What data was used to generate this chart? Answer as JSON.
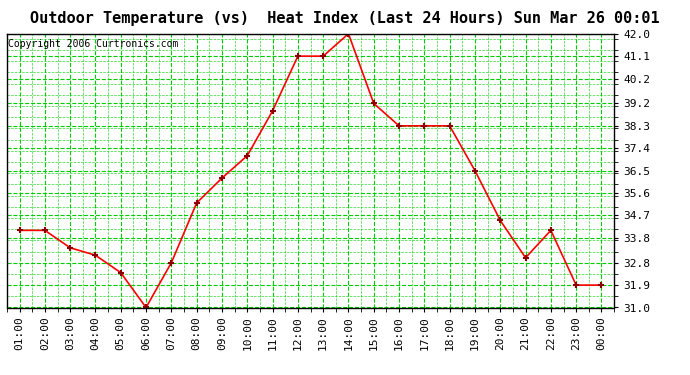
{
  "title": "Outdoor Temperature (vs)  Heat Index (Last 24 Hours) Sun Mar 26 00:01",
  "copyright": "Copyright 2006 Curtronics.com",
  "x_labels": [
    "01:00",
    "02:00",
    "03:00",
    "04:00",
    "05:00",
    "06:00",
    "07:00",
    "08:00",
    "09:00",
    "10:00",
    "11:00",
    "12:00",
    "13:00",
    "14:00",
    "15:00",
    "16:00",
    "17:00",
    "18:00",
    "19:00",
    "20:00",
    "21:00",
    "22:00",
    "23:00",
    "00:00"
  ],
  "y_values": [
    34.1,
    34.1,
    33.4,
    33.1,
    32.4,
    31.0,
    32.8,
    35.2,
    36.2,
    37.1,
    38.9,
    41.1,
    41.1,
    42.0,
    39.2,
    38.3,
    38.3,
    38.3,
    36.5,
    34.5,
    33.0,
    34.1,
    31.9,
    31.9
  ],
  "y_min": 31.0,
  "y_max": 42.0,
  "y_ticks": [
    31.0,
    31.9,
    32.8,
    33.8,
    34.7,
    35.6,
    36.5,
    37.4,
    38.3,
    39.2,
    40.2,
    41.1,
    42.0
  ],
  "line_color": "red",
  "marker_color": "darkred",
  "bg_color": "white",
  "grid_color": "#00cc00",
  "title_fontsize": 11,
  "copyright_fontsize": 7,
  "tick_fontsize": 8
}
